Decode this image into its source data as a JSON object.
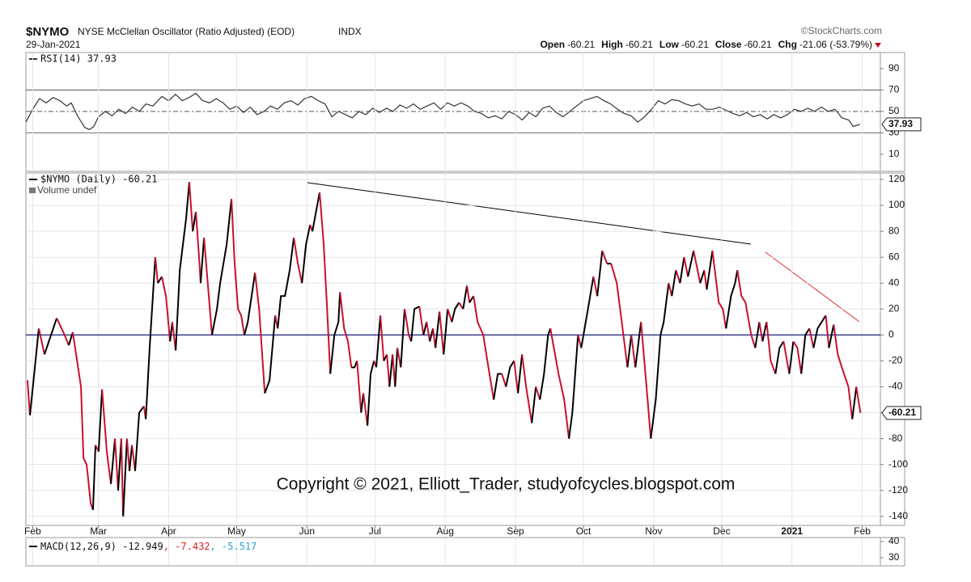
{
  "header": {
    "symbol": "$NYMO",
    "name": "NYSE McClellan Oscillator (Ratio Adjusted) (EOD)",
    "exchange": "INDX",
    "date": "29-Jan-2021",
    "brand": "©StockCharts.com",
    "quote": [
      {
        "label": "Open",
        "value": "-60.21"
      },
      {
        "label": "High",
        "value": "-60.21"
      },
      {
        "label": "Low",
        "value": "-60.21"
      },
      {
        "label": "Close",
        "value": "-60.21"
      },
      {
        "label": "Chg",
        "value": "-21.06 (-53.79%)"
      }
    ]
  },
  "chart_data": [
    {
      "type": "line",
      "xlim": [
        0,
        377
      ],
      "ylim": [
        -6,
        105
      ],
      "yticks": [
        10,
        30,
        50,
        70,
        90
      ],
      "hlines": [
        {
          "value": 70,
          "style": "solid",
          "color": "#777777"
        },
        {
          "value": 50,
          "style": "dashed",
          "color": "#777777"
        },
        {
          "value": 30,
          "style": "solid",
          "color": "#777777"
        }
      ],
      "last_label": "37.93",
      "series": [
        {
          "name": "RSI(14) 37.93",
          "color": "#333333",
          "x": [
            0,
            3,
            6,
            9,
            12,
            15,
            18,
            20,
            23,
            26,
            28,
            30,
            32,
            35,
            38,
            41,
            44,
            47,
            50,
            53,
            56,
            60,
            63,
            66,
            69,
            72,
            75,
            78,
            81,
            84,
            87,
            90,
            93,
            96,
            99,
            102,
            105,
            108,
            111,
            114,
            117,
            120,
            123,
            126,
            129,
            132,
            135,
            138,
            141,
            144,
            147,
            150,
            153,
            156,
            159,
            162,
            165,
            168,
            171,
            174,
            177,
            180,
            183,
            186,
            189,
            192,
            195,
            198,
            201,
            204,
            207,
            210,
            213,
            216,
            219,
            222,
            225,
            228,
            231,
            234,
            237,
            240,
            243,
            246,
            249,
            252,
            255,
            258,
            261,
            264,
            267,
            270,
            273,
            276,
            279,
            282,
            285,
            288,
            291,
            294,
            297,
            300,
            303,
            306,
            309,
            312,
            315,
            318,
            321,
            324,
            327,
            330,
            333,
            336,
            339,
            342,
            345,
            348,
            351,
            354,
            357,
            360,
            363,
            365,
            368
          ],
          "values": [
            40,
            52,
            62,
            58,
            63,
            60,
            55,
            58,
            45,
            35,
            33,
            36,
            45,
            50,
            46,
            52,
            48,
            54,
            50,
            57,
            55,
            64,
            60,
            66,
            60,
            63,
            67,
            60,
            58,
            62,
            58,
            52,
            55,
            49,
            54,
            47,
            50,
            55,
            52,
            58,
            60,
            56,
            62,
            64,
            60,
            57,
            45,
            50,
            47,
            44,
            50,
            47,
            53,
            49,
            53,
            50,
            56,
            53,
            57,
            52,
            55,
            58,
            52,
            58,
            55,
            58,
            55,
            50,
            48,
            44,
            46,
            43,
            50,
            47,
            42,
            49,
            45,
            53,
            55,
            49,
            45,
            50,
            55,
            60,
            62,
            64,
            60,
            57,
            52,
            48,
            46,
            40,
            45,
            52,
            60,
            57,
            61,
            60,
            57,
            55,
            57,
            52,
            52,
            54,
            51,
            48,
            46,
            49,
            45,
            47,
            43,
            47,
            44,
            47,
            52,
            50,
            53,
            50,
            54,
            50,
            52,
            44,
            42,
            36,
            37.93
          ]
        }
      ]
    },
    {
      "type": "line",
      "xlim": [
        0,
        377
      ],
      "ylim": [
        -147,
        125
      ],
      "yticks": [
        -140,
        -120,
        -100,
        -80,
        -60,
        -40,
        -20,
        0,
        20,
        40,
        60,
        80,
        100,
        120
      ],
      "grid": true,
      "xticks": [
        {
          "value": 3,
          "label": "Feb"
        },
        {
          "value": 32,
          "label": "Mar"
        },
        {
          "value": 63,
          "label": "Apr"
        },
        {
          "value": 93,
          "label": "May"
        },
        {
          "value": 124,
          "label": "Jun"
        },
        {
          "value": 154,
          "label": "Jul"
        },
        {
          "value": 185,
          "label": "Aug"
        },
        {
          "value": 216,
          "label": "Sep"
        },
        {
          "value": 246,
          "label": "Oct"
        },
        {
          "value": 277,
          "label": "Nov"
        },
        {
          "value": 307,
          "label": "Dec"
        },
        {
          "value": 338,
          "label": "2021"
        },
        {
          "value": 369,
          "label": "Feb"
        }
      ],
      "hlines": [
        {
          "value": 0,
          "style": "solid",
          "color": "#1c1c80"
        }
      ],
      "last_label": "-60.21",
      "sublabel": "Volume undef",
      "annotation": "Copyright © 2021, Elliott_Trader, studyofcycles.blogspot.com",
      "series": [
        {
          "name": "$NYMO (Daily) -60.21",
          "color": "#000000",
          "down_color": "#c8102e",
          "x": [
            0.7,
            1.8,
            5.7,
            8.2,
            13.6,
            17.1,
            18.9,
            20.7,
            24.3,
            25.4,
            26.8,
            28.6,
            29.6,
            30.7,
            32.1,
            33.6,
            35.7,
            37.5,
            39.3,
            40.7,
            42.1,
            42.9,
            44.6,
            45.7,
            46.8,
            48.2,
            50,
            52.1,
            52.9,
            54.6,
            57.1,
            58.2,
            60,
            61.8,
            63.6,
            64.6,
            66.1,
            67.9,
            70.7,
            72.1,
            73.6,
            75,
            76.4,
            77.1,
            78.6,
            80.7,
            82.1,
            84.3,
            85.7,
            88.6,
            90.7,
            92.1,
            93.6,
            95,
            96.4,
            97.9,
            101.1,
            102.9,
            105.4,
            107.5,
            110,
            111.1,
            112.5,
            114.3,
            116.4,
            118.2,
            120,
            121.8,
            123.6,
            125.4,
            126.4,
            129.6,
            131.4,
            132.9,
            134.3,
            136.1,
            137.9,
            138.6,
            140.4,
            142.1,
            143.6,
            145,
            146.1,
            147.9,
            148.9,
            150.7,
            152.1,
            153.6,
            154.6,
            156.4,
            157.9,
            159.3,
            160.4,
            161.8,
            162.9,
            163.9,
            165.4,
            167.1,
            168.9,
            170,
            171.4,
            173.6,
            175.4,
            176.8,
            178.2,
            179.6,
            180.7,
            182.5,
            184.3,
            186.1,
            187.9,
            189.3,
            191.1,
            192.9,
            194.6,
            195.7,
            197.5,
            199.3,
            201.8,
            203.6,
            206.4,
            208.2,
            210,
            211.8,
            213.6,
            215.4,
            217.1,
            218.9,
            220.7,
            223.2,
            225,
            226.8,
            228.6,
            230.4,
            231.4,
            235,
            237.5,
            239.6,
            241.1,
            243.6,
            245,
            247.5,
            250.4,
            252.1,
            254.3,
            256.4,
            258.2,
            260.7,
            262.9,
            265.4,
            267.1,
            268.9,
            271.4,
            274.3,
            275.7,
            277.9,
            280,
            281.4,
            283.6,
            285,
            286.8,
            288.6,
            290.4,
            292.1,
            294.6,
            297.5,
            299.3,
            300.4,
            302.9,
            305.7,
            307.5,
            308.9,
            311.1,
            312.9,
            313.9,
            315.7,
            317.5,
            320,
            321.8,
            323.6,
            325,
            326.8,
            328.6,
            330.7,
            332.5,
            334.3,
            336.8,
            338.6,
            340.4,
            342.1,
            343.9,
            345.7,
            347.5,
            349.3,
            352.9,
            354.3,
            356.4,
            358.2,
            360,
            362.9,
            364.6,
            366.4,
            368.2
          ],
          "values": [
            -35,
            -62,
            5,
            -15,
            13,
            0,
            -8,
            2,
            -40,
            -95,
            -100,
            -130,
            -135,
            -85,
            -90,
            -42,
            -90,
            -115,
            -80,
            -120,
            -80,
            -140,
            -80,
            -105,
            -85,
            -105,
            -60,
            -55,
            -65,
            -10,
            60,
            40,
            45,
            30,
            -5,
            10,
            -12,
            50,
            90,
            118,
            80,
            95,
            60,
            40,
            75,
            30,
            0,
            20,
            40,
            70,
            105,
            55,
            20,
            15,
            0,
            10,
            48,
            20,
            -45,
            -35,
            15,
            5,
            30,
            30,
            50,
            75,
            55,
            40,
            70,
            85,
            80,
            110,
            70,
            20,
            -30,
            0,
            10,
            33,
            5,
            -5,
            -25,
            -25,
            -20,
            -60,
            -45,
            -70,
            -30,
            -20,
            -25,
            15,
            -20,
            -15,
            -40,
            -15,
            -40,
            -10,
            -25,
            20,
            0,
            -5,
            20,
            22,
            0,
            10,
            -5,
            5,
            -10,
            18,
            -15,
            20,
            10,
            20,
            25,
            20,
            38,
            25,
            30,
            10,
            0,
            -20,
            -50,
            -30,
            -30,
            -40,
            -25,
            -20,
            -45,
            -15,
            -40,
            -68,
            -40,
            -50,
            -30,
            0,
            5,
            -30,
            -50,
            -80,
            -60,
            0,
            -10,
            15,
            45,
            30,
            65,
            55,
            55,
            40,
            10,
            -25,
            0,
            -25,
            10,
            -50,
            -80,
            -50,
            0,
            10,
            40,
            30,
            50,
            40,
            60,
            45,
            65,
            40,
            50,
            35,
            65,
            25,
            20,
            5,
            30,
            40,
            50,
            30,
            25,
            0,
            -10,
            10,
            -5,
            10,
            -20,
            -30,
            -10,
            -5,
            -30,
            -5,
            -10,
            -30,
            0,
            5,
            -10,
            5,
            15,
            -10,
            8,
            -15,
            -25,
            -40,
            -65,
            -40,
            -60.21
          ]
        }
      ]
    },
    {
      "type": "line",
      "xlim": [
        0,
        377
      ],
      "ylim": [
        25,
        42.5
      ],
      "yticks": [
        30,
        40
      ],
      "legend": [
        {
          "text": "MACD(12,26,9) -12.949",
          "color": "#111111"
        },
        {
          "text": ", -7.432",
          "color": "#e02020"
        },
        {
          "text": ", -5.517",
          "color": "#2a9fd6"
        }
      ]
    }
  ]
}
